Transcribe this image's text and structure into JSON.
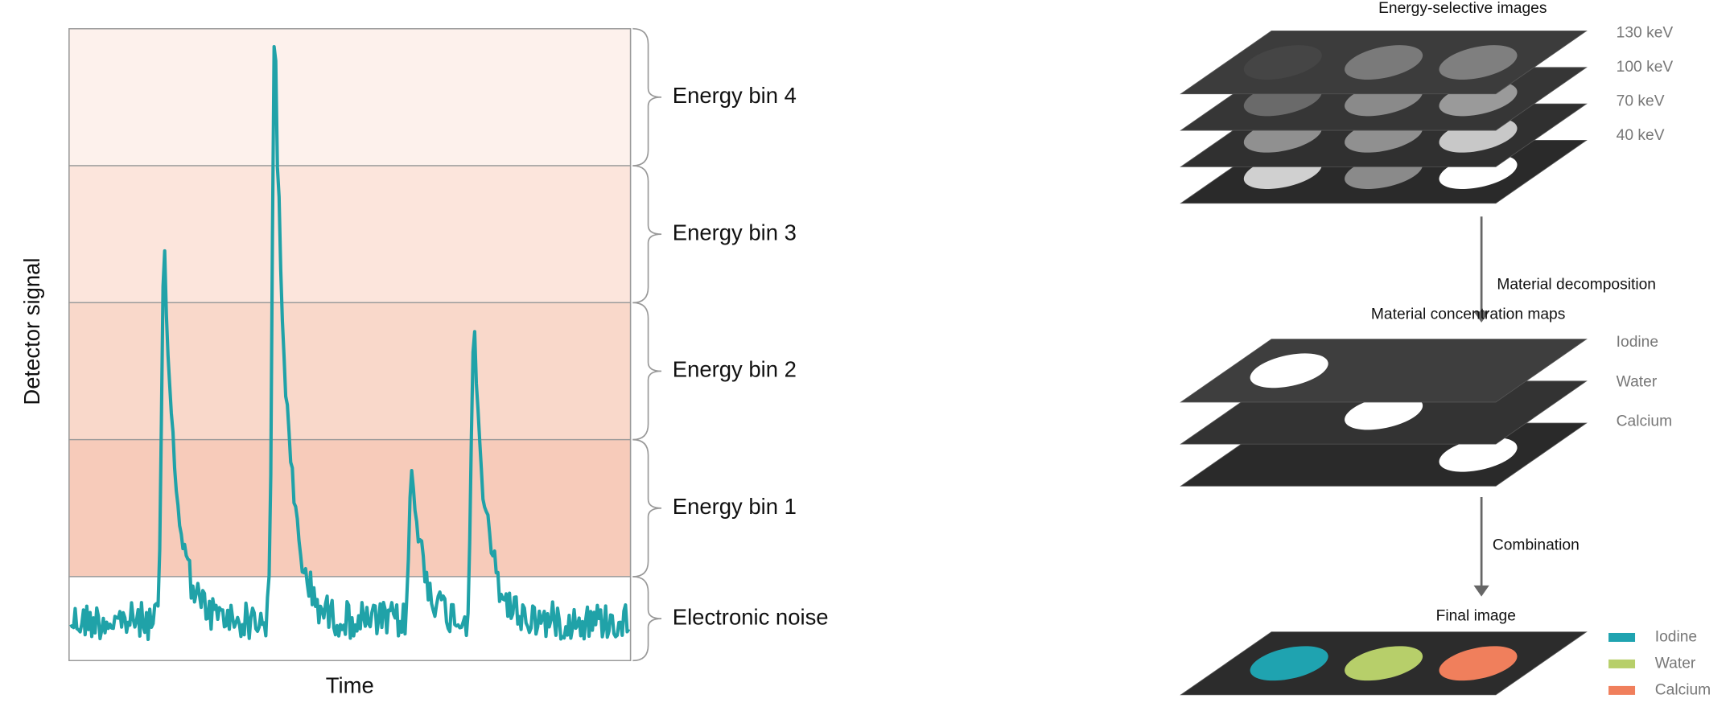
{
  "left": {
    "y_label": "Detector signal",
    "x_label": "Time",
    "bins": [
      "Energy bin 4",
      "Energy bin 3",
      "Energy bin 2",
      "Energy bin 1",
      "Electronic noise"
    ]
  },
  "right": {
    "energy_title": "Energy-selective images",
    "energies": [
      "130 keV",
      "100 keV",
      "70 keV",
      "40 keV"
    ],
    "step1": "Material decomposition",
    "maps_title": "Material concentration maps",
    "materials": [
      "Iodine",
      "Water",
      "Calcium"
    ],
    "step2": "Combination",
    "final_title": "Final image",
    "legend": [
      {
        "label": "Iodine",
        "color": "#1fa3b0"
      },
      {
        "label": "Water",
        "color": "#b7cf6a"
      },
      {
        "label": "Calcium",
        "color": "#f07f5c"
      }
    ]
  }
}
